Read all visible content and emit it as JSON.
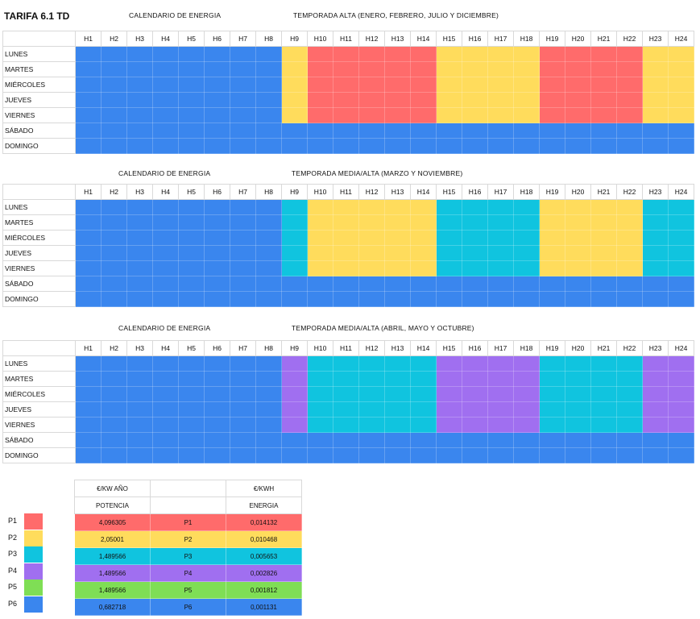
{
  "title": "TARIFA 6.1 TD",
  "hours": [
    "H1",
    "H2",
    "H3",
    "H4",
    "H5",
    "H6",
    "H7",
    "H8",
    "H9",
    "H10",
    "H11",
    "H12",
    "H13",
    "H14",
    "H15",
    "H16",
    "H17",
    "H18",
    "H19",
    "H20",
    "H21",
    "H22",
    "H23",
    "H24"
  ],
  "days": [
    "LUNES",
    "MARTES",
    "MIÉRCOLES",
    "JUEVES",
    "VIERNES",
    "SÁBADO",
    "DOMINGO"
  ],
  "colors": {
    "P1": "#ff6b6b",
    "P2": "#ffdc5c",
    "P3": "#10c4df",
    "P4": "#a06ff0",
    "P5": "#7fde55",
    "P6": "#3a86ee"
  },
  "calendars": [
    {
      "caption_left": "CALENDARIO DE ENERGIA",
      "caption_right": "TEMPORADA ALTA (ENERO, FEBRERO, JULIO Y DICIEMBRE)",
      "weekday_pattern": [
        "P6",
        "P6",
        "P6",
        "P6",
        "P6",
        "P6",
        "P6",
        "P6",
        "P2",
        "P1",
        "P1",
        "P1",
        "P1",
        "P1",
        "P2",
        "P2",
        "P2",
        "P2",
        "P1",
        "P1",
        "P1",
        "P1",
        "P2",
        "P2"
      ],
      "weekend_period": "P6"
    },
    {
      "caption_left": "CALENDARIO DE ENERGIA",
      "caption_right": "TEMPORADA MEDIA/ALTA (MARZO Y NOVIEMBRE)",
      "weekday_pattern": [
        "P6",
        "P6",
        "P6",
        "P6",
        "P6",
        "P6",
        "P6",
        "P6",
        "P3",
        "P2",
        "P2",
        "P2",
        "P2",
        "P2",
        "P3",
        "P3",
        "P3",
        "P3",
        "P2",
        "P2",
        "P2",
        "P2",
        "P3",
        "P3"
      ],
      "weekend_period": "P6"
    },
    {
      "caption_left": "CALENDARIO DE ENERGIA",
      "caption_right": "TEMPORADA MEDIA/ALTA (ABRIL, MAYO Y OCTUBRE)",
      "weekday_pattern": [
        "P6",
        "P6",
        "P6",
        "P6",
        "P6",
        "P6",
        "P6",
        "P6",
        "P4",
        "P3",
        "P3",
        "P3",
        "P3",
        "P3",
        "P4",
        "P4",
        "P4",
        "P4",
        "P3",
        "P3",
        "P3",
        "P3",
        "P4",
        "P4"
      ],
      "weekend_period": "P6"
    }
  ],
  "legend": {
    "header_left": "€/KW AÑO",
    "header_right": "€/KWH",
    "sub_left": "POTENCIA",
    "sub_right": "ENERGIA",
    "rows": [
      {
        "period": "P1",
        "potencia": "4,096305",
        "energia": "0,014132"
      },
      {
        "period": "P2",
        "potencia": "2,05001",
        "energia": "0,010468"
      },
      {
        "period": "P3",
        "potencia": "1,489566",
        "energia": "0,005653"
      },
      {
        "period": "P4",
        "potencia": "1,489566",
        "energia": "0,002826"
      },
      {
        "period": "P5",
        "potencia": "1,489566",
        "energia": "0,001812"
      },
      {
        "period": "P6",
        "potencia": "0,682718",
        "energia": "0,001131"
      }
    ]
  }
}
